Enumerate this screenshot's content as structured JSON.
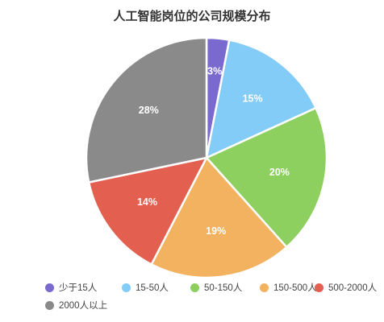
{
  "chart_data": {
    "type": "pie",
    "title": "人工智能岗位的公司规模分布",
    "categories": [
      "少于15人",
      "15-50人",
      "50-150人",
      "150-500人",
      "500-2000人",
      "2000人以上"
    ],
    "values": [
      3,
      15,
      20,
      19,
      14,
      28
    ],
    "value_labels": [
      "3%",
      "15%",
      "20%",
      "19%",
      "14%",
      "28%"
    ],
    "colors": [
      "#7a6ad0",
      "#83ccf8",
      "#8ed05f",
      "#f2b25f",
      "#e36050",
      "#8a8a8a"
    ],
    "legend_placement": "bottom",
    "start": "top, clockwise"
  }
}
